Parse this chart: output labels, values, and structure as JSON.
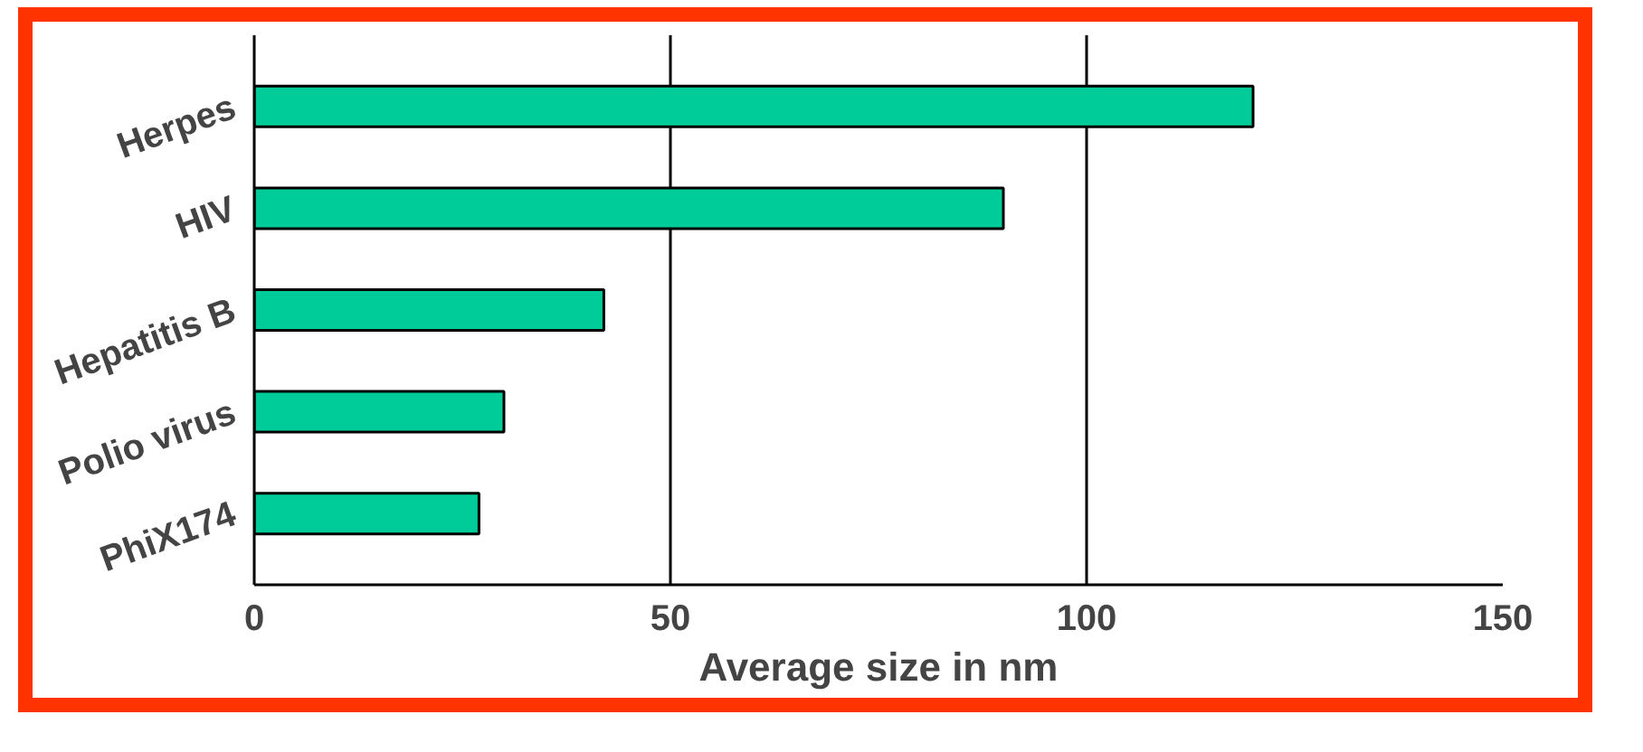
{
  "chart_data": {
    "type": "bar",
    "orientation": "horizontal",
    "xlabel": "Average size in nm",
    "categories": [
      "Herpes",
      "HIV",
      "Hepatitis B",
      "Polio virus",
      "PhiX174"
    ],
    "values": [
      120,
      90,
      42,
      30,
      27
    ],
    "color": "#00cc99",
    "xlim": [
      0,
      150
    ],
    "xticks": [
      0,
      50,
      100,
      150
    ],
    "grid": "x"
  }
}
